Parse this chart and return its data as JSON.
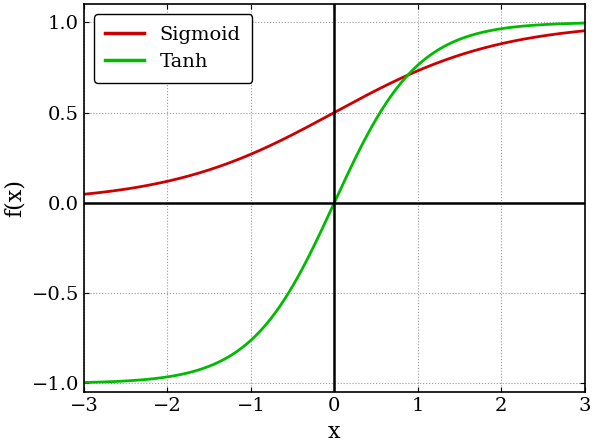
{
  "title": "",
  "xlabel": "x",
  "ylabel": "f(x)",
  "xlim": [
    -3,
    3
  ],
  "ylim": [
    -1.05,
    1.1
  ],
  "xticks": [
    -3,
    -2,
    -1,
    0,
    1,
    2,
    3
  ],
  "yticks": [
    -1,
    -0.5,
    0,
    0.5,
    1
  ],
  "sigmoid_color": "#cc0000",
  "tanh_color": "#00bb00",
  "line_width": 2.0,
  "legend_labels": [
    "Sigmoid",
    "Tanh"
  ],
  "background_color": "#ffffff",
  "grid_color": "#999999",
  "axis_line_color": "#000000",
  "xlabel_fontsize": 16,
  "ylabel_fontsize": 16,
  "tick_fontsize": 14,
  "legend_fontsize": 14
}
